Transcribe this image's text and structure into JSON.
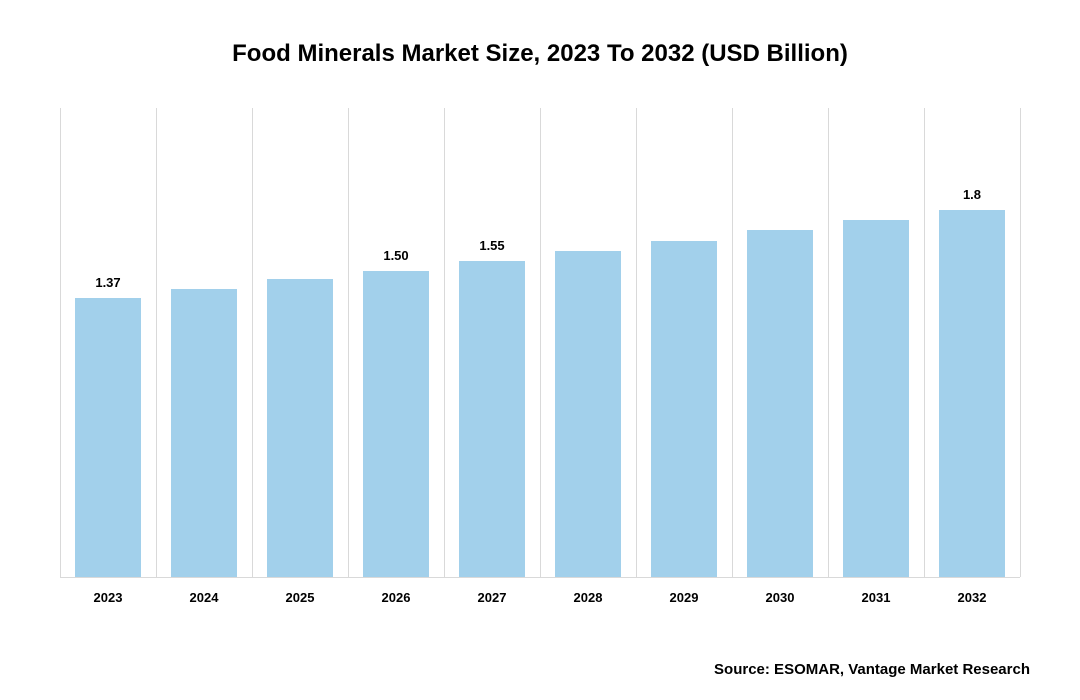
{
  "chart": {
    "type": "bar",
    "title": "Food Minerals Market Size, 2023 To 2032 (USD Billion)",
    "title_fontsize": 24,
    "title_color": "#000000",
    "background_color": "#ffffff",
    "categories": [
      "2023",
      "2024",
      "2025",
      "2026",
      "2027",
      "2028",
      "2029",
      "2030",
      "2031",
      "2032"
    ],
    "values": [
      1.37,
      1.41,
      1.46,
      1.5,
      1.55,
      1.6,
      1.65,
      1.7,
      1.75,
      1.8
    ],
    "value_labels": [
      "1.37",
      "",
      "",
      "1.50",
      "1.55",
      "",
      "",
      "",
      "",
      "1.8"
    ],
    "bar_color": "#a2d0eb",
    "grid_color": "#d9d9d9",
    "ylim": [
      0,
      2.3
    ],
    "label_fontsize": 13,
    "label_color": "#000000",
    "xaxis_fontsize": 13,
    "xaxis_fontweight": "700",
    "bar_width_pct": 68
  },
  "source_text": "Source: ESOMAR, Vantage Market Research",
  "source_fontsize": 15
}
